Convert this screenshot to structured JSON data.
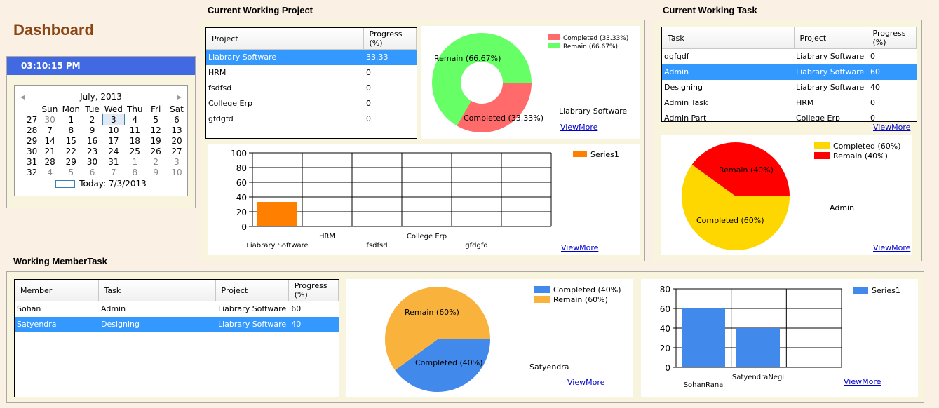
{
  "page": {
    "title": "Dashboard"
  },
  "clock": {
    "time": "03:10:15 PM"
  },
  "calendar": {
    "month_label": "July, 2013",
    "prev": "◀",
    "next": "▶",
    "weekdays": [
      "Sun",
      "Mon",
      "Tue",
      "Wed",
      "Thu",
      "Fri",
      "Sat"
    ],
    "weeks": [
      {
        "wk": "27",
        "days": [
          "30",
          "1",
          "2",
          "3",
          "4",
          "5",
          "6"
        ]
      },
      {
        "wk": "28",
        "days": [
          "7",
          "8",
          "9",
          "10",
          "11",
          "12",
          "13"
        ]
      },
      {
        "wk": "29",
        "days": [
          "14",
          "15",
          "16",
          "17",
          "18",
          "19",
          "20"
        ]
      },
      {
        "wk": "30",
        "days": [
          "21",
          "22",
          "23",
          "24",
          "25",
          "26",
          "27"
        ]
      },
      {
        "wk": "31",
        "days": [
          "28",
          "29",
          "30",
          "31",
          "1",
          "2",
          "3"
        ]
      },
      {
        "wk": "32",
        "days": [
          "4",
          "5",
          "6",
          "7",
          "8",
          "9",
          "10"
        ]
      }
    ],
    "today_label": "Today: 7/3/2013"
  },
  "project": {
    "section_title": "Current Working Project",
    "columns": [
      "Project",
      "Progress (%)"
    ],
    "rows": [
      [
        "Liabrary Software",
        "33.33"
      ],
      [
        "HRM",
        "0"
      ],
      [
        "fsdfsd",
        "0"
      ],
      [
        "College Erp",
        "0"
      ],
      [
        "gfdgfd",
        "0"
      ]
    ],
    "selected_row": 0,
    "donut": {
      "label_remain": "Remain (66.67%)",
      "label_completed": "Completed (33.33%)",
      "legend": [
        "Completed (33.33%)",
        "Remain (66.67%)"
      ],
      "caption": "Liabrary Software",
      "viewmore": "ViewMore"
    },
    "bar": {
      "legend": "Series1",
      "viewmore": "ViewMore"
    }
  },
  "task": {
    "section_title": "Current Working Task",
    "columns": [
      "Task",
      "Project",
      "Progress (%)"
    ],
    "rows": [
      [
        "dgfgdf",
        "Liabrary Software",
        "0"
      ],
      [
        "Admin",
        "Liabrary Software",
        "60"
      ],
      [
        "Designing",
        "Liabrary Software",
        "40"
      ],
      [
        "Admin Task",
        "HRM",
        "0"
      ],
      [
        "Admin Part",
        "College Erp",
        "0"
      ]
    ],
    "selected_row": 1,
    "viewmore_grid": "ViewMore",
    "pie": {
      "label_remain": "Remain (40%)",
      "label_completed": "Completed (60%)",
      "legend": [
        "Completed (60%)",
        "Remain (40%)"
      ],
      "caption": "Admin",
      "viewmore": "ViewMore"
    }
  },
  "member": {
    "section_title": "Working MemberTask",
    "columns": [
      "Member",
      "Task",
      "Project",
      "Progress (%)"
    ],
    "rows": [
      [
        "Sohan",
        "Admin",
        "Liabrary Software",
        "60"
      ],
      [
        "Satyendra",
        "Designing",
        "Liabrary Software",
        "40"
      ]
    ],
    "selected_row": 1,
    "pie": {
      "label_remain": "Remain (60%)",
      "label_completed": "Completed (40%)",
      "legend": [
        "Completed (40%)",
        "Remain (60%)"
      ],
      "caption": "Satyendra",
      "viewmore": "ViewMore"
    },
    "bar": {
      "legend": "Series1",
      "viewmore": "ViewMore"
    }
  },
  "colors": {
    "accent_selection": "#3399ff",
    "clock_bg": "#4169e1",
    "title": "#8b4513",
    "donut_completed": "#ff6b6b",
    "donut_remain": "#66ff66",
    "task_completed": "#ffd700",
    "task_remain": "#ff0000",
    "member_completed": "#4189ea",
    "member_remain": "#f9b23c",
    "bar_project": "#ff8000",
    "bar_member": "#4189ea"
  },
  "chart_data": [
    {
      "type": "pie",
      "categories": [
        "Completed (33.33%)",
        "Remain (66.67%)"
      ],
      "values": [
        33.33,
        66.67
      ],
      "legend": "top-right"
    },
    {
      "type": "bar",
      "categories": [
        "Liabrary Software",
        "HRM",
        "fsdfsd",
        "College Erp",
        "gfdgfd"
      ],
      "series": [
        {
          "name": "Series1",
          "values": [
            33.33,
            0,
            0,
            0,
            0
          ]
        }
      ],
      "yticks": [
        "0",
        "20",
        "40",
        "60",
        "80",
        "100"
      ],
      "ylim": [
        0,
        100
      ],
      "grid": true,
      "legend": "top-right"
    },
    {
      "type": "pie",
      "categories": [
        "Completed (60%)",
        "Remain (40%)"
      ],
      "values": [
        60,
        40
      ],
      "legend": "top-right"
    },
    {
      "type": "pie",
      "categories": [
        "Completed (40%)",
        "Remain (60%)"
      ],
      "values": [
        40,
        60
      ],
      "legend": "top-right"
    },
    {
      "type": "bar",
      "categories": [
        "SohanRana",
        "SatyendraNegi"
      ],
      "series": [
        {
          "name": "Series1",
          "values": [
            60,
            40
          ]
        }
      ],
      "yticks": [
        "0",
        "20",
        "40",
        "60",
        "80"
      ],
      "ylim": [
        0,
        80
      ],
      "grid": true,
      "legend": "top-right"
    }
  ]
}
